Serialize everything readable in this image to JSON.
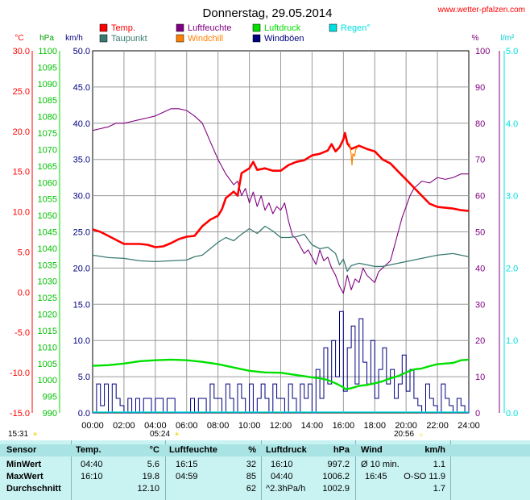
{
  "header": {
    "title": "Donnerstag, 29.05.2014",
    "site": "www.wetter-pfalzen.com"
  },
  "legend": [
    {
      "label": "Temp.",
      "color": "#ff0000",
      "row": 0,
      "col": 0
    },
    {
      "label": "Luftfeuchte",
      "color": "#800080",
      "row": 0,
      "col": 1
    },
    {
      "label": "Luftdruck",
      "color": "#00e000",
      "row": 0,
      "col": 2
    },
    {
      "label": "Regen°",
      "color": "#00e0e0",
      "row": 0,
      "col": 3
    },
    {
      "label": "Taupunkt",
      "color": "#3a7a72",
      "row": 1,
      "col": 0
    },
    {
      "label": "Windchill",
      "color": "#ff8000",
      "row": 1,
      "col": 1
    },
    {
      "label": "Windböen",
      "color": "#000080",
      "row": 1,
      "col": 2
    }
  ],
  "axis_units": {
    "temp": "°C",
    "pressure": "hPa",
    "wind": "km/h",
    "humidity": "%",
    "rain": "l/m²"
  },
  "sun": {
    "sunrise_prev": "15:31",
    "sunrise": "05:24",
    "sunset": "20:56"
  },
  "chart_data": {
    "type": "line",
    "x_ticks": [
      "00:00",
      "02:00",
      "04:00",
      "06:00",
      "08:00",
      "10:00",
      "12:00",
      "14:00",
      "16:00",
      "18:00",
      "20:00",
      "22:00",
      "24:00"
    ],
    "xlim": [
      0,
      24
    ],
    "axes": {
      "temp": {
        "ticks": [
          "30.0",
          "25.0",
          "20.0",
          "15.0",
          "10.0",
          "5.0",
          "0.0",
          "-5.0",
          "-10.0",
          "-15.0"
        ],
        "ylim": [
          -15,
          30
        ],
        "color": "#ff0000"
      },
      "pressure": {
        "ticks": [
          "1100",
          "1095",
          "1090",
          "1085",
          "1080",
          "1075",
          "1070",
          "1065",
          "1060",
          "1055",
          "1050",
          "1045",
          "1040",
          "1035",
          "1030",
          "1025",
          "1020",
          "1015",
          "1010",
          "1005",
          "1000",
          "995",
          "990"
        ],
        "ylim": [
          990,
          1100
        ],
        "color": "#00c000"
      },
      "wind": {
        "ticks": [
          "50.0",
          "45.0",
          "40.0",
          "35.0",
          "30.0",
          "25.0",
          "20.0",
          "15.0",
          "10.0",
          "5.0",
          "0.0"
        ],
        "ylim": [
          0,
          50
        ],
        "color": "#000080"
      },
      "humidity": {
        "ticks": [
          "100",
          "90",
          "80",
          "70",
          "60",
          "50",
          "40",
          "30",
          "20",
          "10",
          "0"
        ],
        "ylim": [
          0,
          100
        ],
        "color": "#800080"
      },
      "rain": {
        "ticks": [
          "5.0",
          "4.0",
          "3.0",
          "2.0",
          "1.0",
          "0.0"
        ],
        "ylim": [
          0,
          5
        ],
        "color": "#00e0e0"
      }
    },
    "series": [
      {
        "name": "Temp.",
        "axis": "temp",
        "color": "#ff0000",
        "width": 2.6,
        "x": [
          0,
          0.5,
          1,
          1.5,
          2,
          2.5,
          3,
          3.5,
          4,
          4.5,
          5,
          5.5,
          6,
          6.5,
          7,
          7.5,
          8,
          8.25,
          8.5,
          9,
          9.25,
          9.5,
          10,
          10.25,
          10.5,
          11,
          11.5,
          12,
          12.5,
          13,
          13.5,
          14,
          14.5,
          15,
          15.25,
          15.5,
          15.75,
          16,
          16.1,
          16.25,
          16.5,
          17,
          17.5,
          18,
          18.5,
          19,
          19.5,
          20,
          20.5,
          21,
          21.5,
          22,
          22.5,
          23,
          23.5,
          24
        ],
        "y": [
          7.8,
          7.5,
          7.0,
          6.5,
          6.0,
          6.0,
          6.0,
          5.9,
          5.6,
          5.7,
          6.1,
          6.6,
          6.9,
          7.0,
          8.2,
          9.0,
          9.5,
          10.3,
          11.7,
          12.5,
          12.0,
          14.8,
          15.4,
          16.2,
          15.2,
          15.4,
          15.1,
          15.1,
          15.8,
          16.2,
          16.4,
          17.0,
          17.2,
          17.6,
          18.4,
          17.5,
          18.0,
          19.0,
          19.8,
          18.5,
          17.8,
          18.2,
          17.8,
          17.5,
          16.5,
          16.0,
          15.0,
          14.0,
          13.0,
          12.0,
          11.0,
          10.6,
          10.5,
          10.4,
          10.2,
          10.1
        ]
      },
      {
        "name": "Windchill",
        "axis": "temp",
        "color": "#ff8000",
        "width": 1.2,
        "x": [
          16.4,
          16.5,
          16.55,
          16.6,
          16.7,
          16.8,
          16.9
        ],
        "y": [
          18.5,
          17.0,
          15.8,
          17.2,
          16.9,
          17.8,
          18.0
        ]
      },
      {
        "name": "Taupunkt",
        "axis": "temp",
        "color": "#3a7a72",
        "width": 1.3,
        "x": [
          0,
          1,
          2,
          3,
          4,
          5,
          6,
          6.5,
          7,
          7.5,
          8,
          8.5,
          9,
          9.5,
          10,
          10.5,
          11,
          11.5,
          12,
          12.5,
          13,
          13.5,
          14,
          14.5,
          15,
          15.5,
          15.75,
          16,
          16.25,
          16.5,
          17,
          17.5,
          18,
          18.5,
          19,
          19.5,
          20,
          20.5,
          21,
          21.5,
          22,
          23,
          24
        ],
        "y": [
          4.6,
          4.3,
          4.2,
          3.9,
          3.8,
          3.9,
          4.0,
          4.4,
          4.6,
          5.4,
          6.2,
          6.8,
          6.4,
          7.2,
          7.9,
          7.3,
          8.2,
          7.6,
          6.8,
          6.8,
          6.9,
          7.2,
          5.9,
          5.4,
          5.6,
          4.8,
          3.4,
          4.1,
          2.6,
          3.3,
          3.6,
          3.4,
          3.2,
          3.2,
          3.4,
          3.6,
          3.8,
          4.0,
          4.2,
          4.4,
          4.6,
          4.8,
          4.4
        ]
      },
      {
        "name": "Luftfeuchte",
        "axis": "humidity",
        "color": "#800080",
        "width": 1.1,
        "x": [
          0,
          0.5,
          1,
          1.5,
          2,
          2.5,
          3,
          3.5,
          4,
          4.5,
          5,
          5.5,
          6,
          6.5,
          7,
          7.5,
          8,
          8.5,
          9,
          9.25,
          9.5,
          9.75,
          10,
          10.25,
          10.5,
          10.75,
          11,
          11.25,
          11.5,
          11.75,
          12,
          12.25,
          12.5,
          12.75,
          13,
          13.25,
          13.5,
          13.75,
          14,
          14.25,
          14.5,
          14.75,
          15,
          15.25,
          15.5,
          15.75,
          16,
          16.25,
          16.5,
          16.75,
          17,
          17.25,
          17.5,
          17.75,
          18,
          18.25,
          18.5,
          18.75,
          19,
          19.25,
          19.5,
          19.75,
          20,
          20.25,
          20.5,
          20.75,
          21,
          21.5,
          22,
          22.5,
          23,
          23.5,
          24
        ],
        "y": [
          78,
          78.5,
          79,
          80,
          80,
          80.5,
          81,
          81.5,
          82,
          83,
          84,
          84,
          83.5,
          82,
          80,
          75,
          70,
          66,
          63,
          64,
          60,
          62,
          58,
          61,
          57,
          60,
          56,
          58,
          55,
          57,
          56,
          58,
          53,
          49,
          48,
          46,
          44,
          45,
          43,
          41,
          45,
          42,
          43,
          40,
          38,
          35,
          33,
          38,
          34,
          37,
          36,
          40,
          38,
          37,
          36,
          39,
          40,
          41,
          42,
          46,
          50,
          54,
          57,
          60,
          62,
          63,
          64,
          63.5,
          65,
          64.5,
          65,
          66,
          66
        ]
      },
      {
        "name": "Luftdruck",
        "axis": "pressure",
        "color": "#00e000",
        "width": 2.4,
        "x": [
          0,
          1,
          2,
          3,
          4,
          5,
          6,
          7,
          8,
          9,
          10,
          11,
          12,
          13,
          14,
          14.5,
          15,
          15.5,
          16,
          16.1,
          16.5,
          17,
          17.5,
          18,
          18.5,
          19,
          19.5,
          20,
          20.5,
          21,
          21.5,
          22,
          22.5,
          23,
          23.5,
          24
        ],
        "y": [
          1004.3,
          1004.5,
          1005.0,
          1005.7,
          1006.0,
          1006.2,
          1006.0,
          1005.5,
          1004.8,
          1003.8,
          1002.8,
          1002.3,
          1002.2,
          1001.5,
          1000.8,
          1000.5,
          1000.0,
          999.0,
          997.8,
          997.2,
          997.5,
          998.2,
          998.5,
          999.0,
          999.6,
          1000.5,
          1001.2,
          1002.3,
          1003.2,
          1003.5,
          1004.2,
          1004.8,
          1005.0,
          1005.2,
          1006.0,
          1006.2
        ]
      }
    ],
    "wind_gusts": {
      "name": "Windböen",
      "axis": "wind",
      "color": "#000080",
      "x": [
        0,
        0.25,
        0.5,
        0.75,
        1,
        1.25,
        1.5,
        1.75,
        2,
        2.25,
        2.5,
        2.75,
        3,
        3.25,
        3.5,
        3.75,
        4,
        4.25,
        4.5,
        4.75,
        5,
        5.25,
        5.5,
        5.75,
        6,
        6.25,
        6.5,
        6.75,
        7,
        7.25,
        7.5,
        7.75,
        8,
        8.25,
        8.5,
        8.75,
        9,
        9.25,
        9.5,
        9.75,
        10,
        10.25,
        10.5,
        10.75,
        11,
        11.25,
        11.5,
        11.75,
        12,
        12.25,
        12.5,
        12.75,
        13,
        13.25,
        13.5,
        13.75,
        14,
        14.25,
        14.5,
        14.75,
        15,
        15.25,
        15.5,
        15.75,
        16,
        16.25,
        16.5,
        16.75,
        17,
        17.25,
        17.5,
        17.75,
        18,
        18.25,
        18.5,
        18.75,
        19,
        19.25,
        19.5,
        19.75,
        20,
        20.25,
        20.5,
        20.75,
        21,
        21.25,
        21.5,
        21.75,
        22,
        22.25,
        22.5,
        22.75,
        23,
        23.25,
        23.5,
        23.75,
        24
      ],
      "y": [
        0,
        4,
        1,
        4,
        0,
        4,
        2,
        1,
        0,
        2,
        0,
        2,
        0,
        2,
        2,
        0,
        2,
        2,
        0,
        2,
        2,
        0,
        0,
        0,
        0,
        2,
        0,
        2,
        2,
        0,
        4,
        2,
        2,
        0,
        4,
        2,
        0,
        4,
        2,
        0,
        4,
        0,
        2,
        4,
        2,
        0,
        4,
        2,
        2,
        0,
        4,
        2,
        0,
        4,
        2,
        4,
        0,
        6,
        2,
        9,
        4,
        10,
        5,
        14,
        3,
        9,
        12,
        4,
        13,
        7,
        4,
        10,
        2,
        6,
        9,
        4,
        6,
        2,
        4,
        8,
        3,
        6,
        2,
        1,
        0,
        4,
        2,
        1,
        0,
        4,
        2,
        1,
        0,
        2,
        1,
        0,
        2
      ]
    },
    "rain_total": [
      0,
      0
    ]
  },
  "stats": {
    "headers": {
      "sensor": "Sensor",
      "temp": "Temp.",
      "temp_unit": "°C",
      "hum": "Luftfeuchte",
      "hum_unit": "%",
      "press": "Luftdruck",
      "press_unit": "hPa",
      "wind": "Wind",
      "wind_unit": "km/h"
    },
    "rows": [
      {
        "label": "MinWert",
        "temp_time": "04:40",
        "temp_val": "5.6",
        "hum_time": "16:15",
        "hum_val": "32",
        "press_time": "16:10",
        "press_val": "997.2",
        "wind_time": "Ø 10 min.",
        "wind_val": "1.1"
      },
      {
        "label": "MaxWert",
        "temp_time": "16:10",
        "temp_val": "19.8",
        "hum_time": "04:59",
        "hum_val": "85",
        "press_time": "04:40",
        "press_val": "1006.2",
        "wind_time": "16:45",
        "wind_val": "O-SO 11.9"
      },
      {
        "label": "Durchschnitt",
        "temp_time": "",
        "temp_val": "12.10",
        "hum_time": "",
        "hum_val": "62",
        "press_time": "^2.3hPa/h",
        "press_val": "1002.9",
        "wind_time": "",
        "wind_val": "1.7"
      }
    ]
  }
}
